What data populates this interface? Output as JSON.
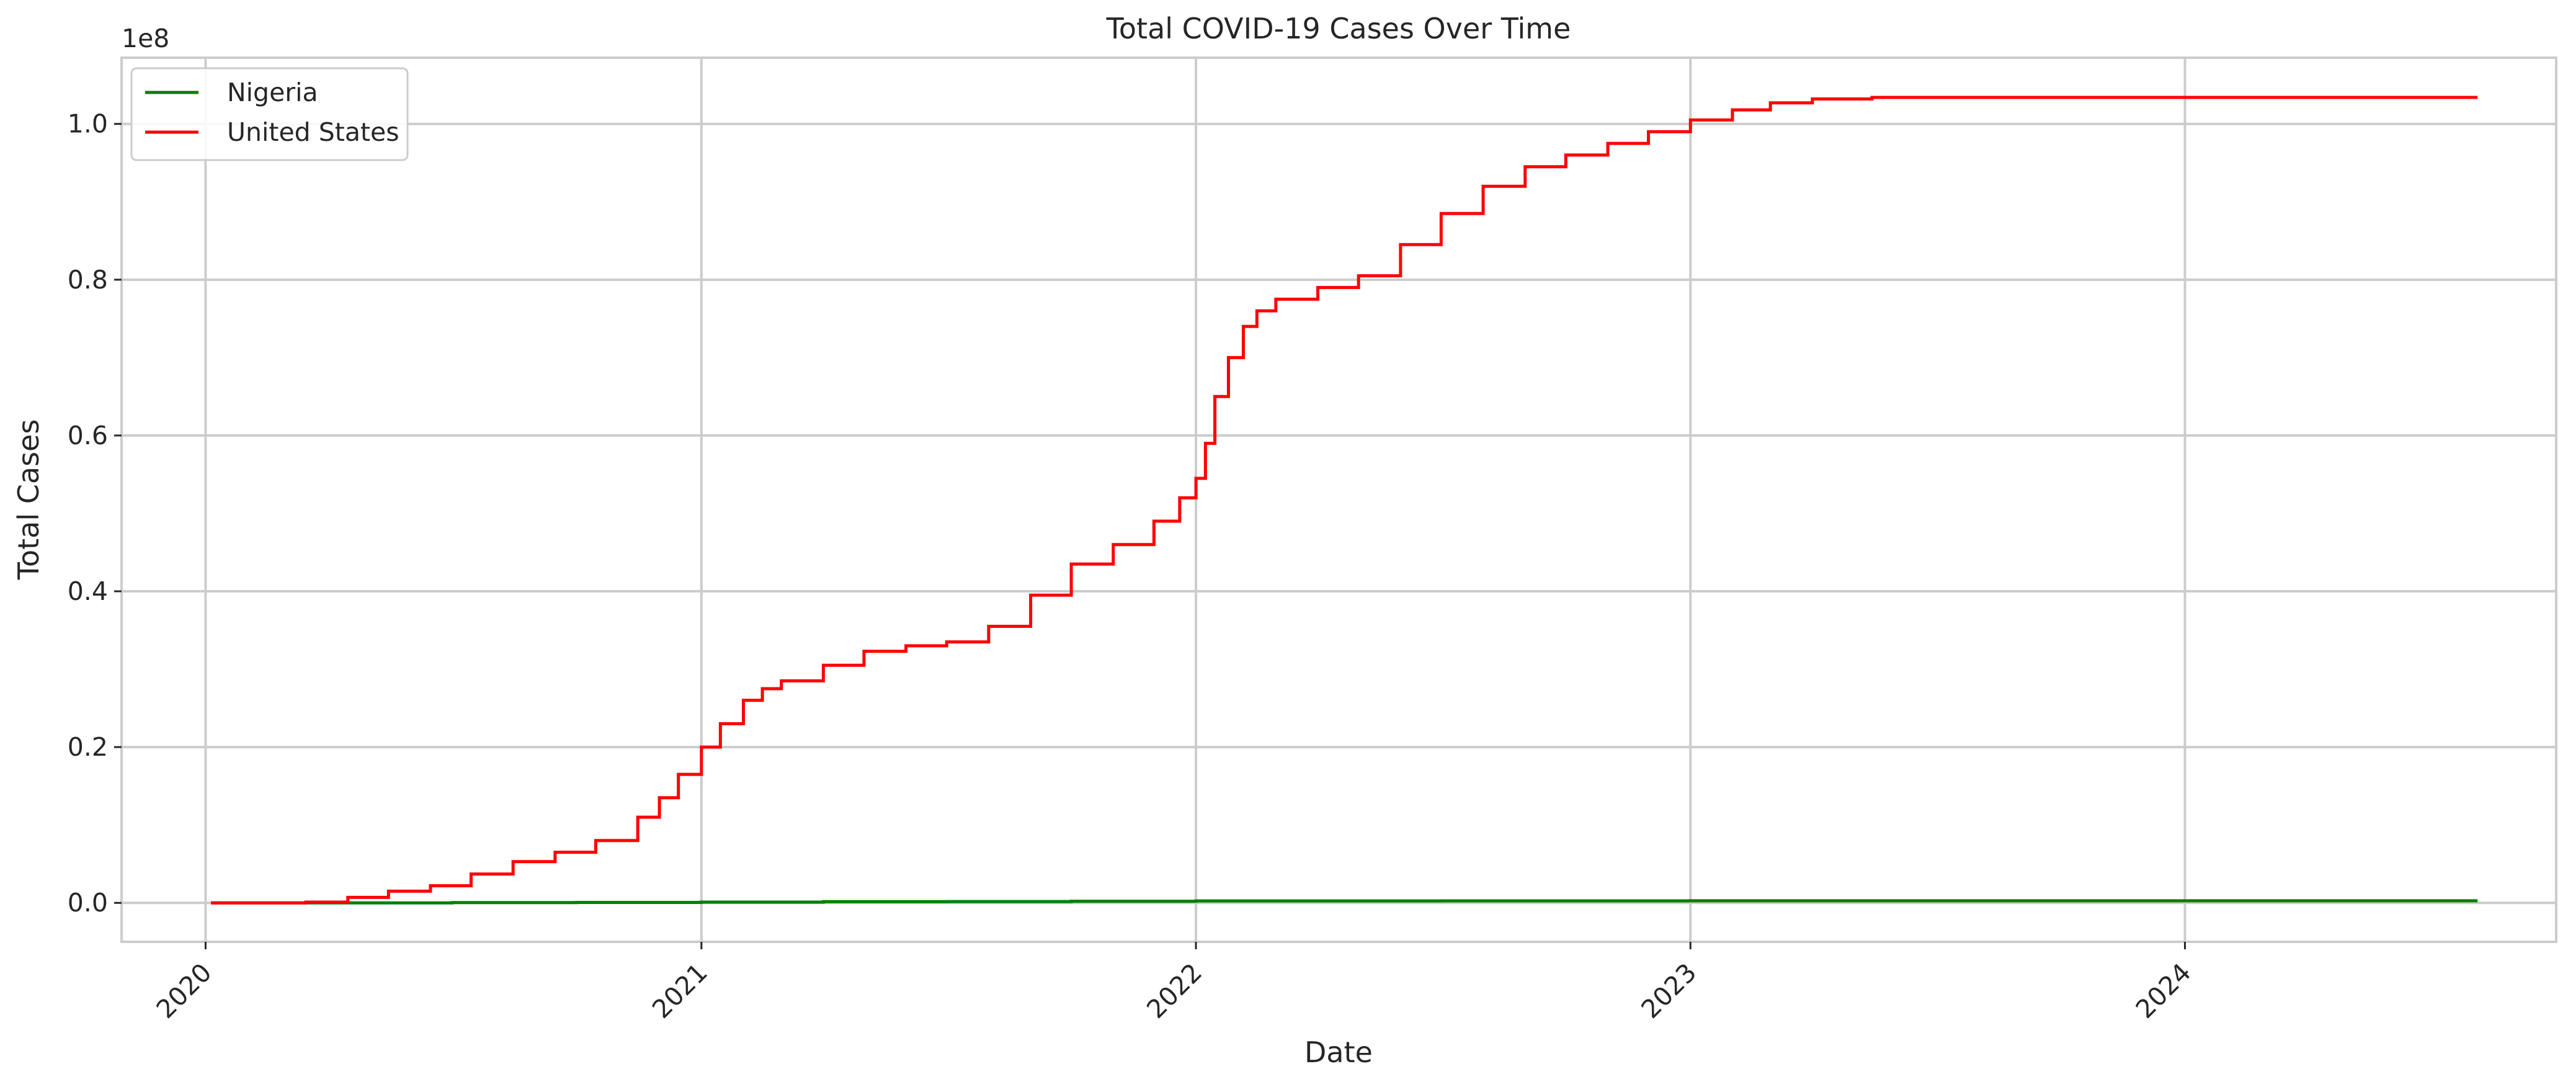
{
  "chart_data": {
    "type": "line",
    "title": "Total COVID-19 Cases Over Time",
    "xlabel": "Date",
    "ylabel": "Total Cases",
    "y_offset_label": "1e8",
    "xlim": [
      "2019-10-31",
      "2024-10-01"
    ],
    "ylim": [
      -5000000,
      108500000
    ],
    "x_ticks": [
      {
        "date": "2020-01-01",
        "label": "2020"
      },
      {
        "date": "2021-01-01",
        "label": "2021"
      },
      {
        "date": "2022-01-01",
        "label": "2022"
      },
      {
        "date": "2023-01-01",
        "label": "2023"
      },
      {
        "date": "2024-01-01",
        "label": "2024"
      }
    ],
    "y_ticks": [
      {
        "value": 0,
        "label": "0.0"
      },
      {
        "value": 20000000,
        "label": "0.2"
      },
      {
        "value": 40000000,
        "label": "0.4"
      },
      {
        "value": 60000000,
        "label": "0.6"
      },
      {
        "value": 80000000,
        "label": "0.8"
      },
      {
        "value": 100000000,
        "label": "1.0"
      }
    ],
    "grid": true,
    "legend_position": "top-left",
    "series": [
      {
        "name": "Nigeria",
        "color": "#008000",
        "line_style": "step",
        "points": [
          [
            "2020-01-05",
            0
          ],
          [
            "2020-04-01",
            0
          ],
          [
            "2020-07-01",
            30000
          ],
          [
            "2020-10-01",
            60000
          ],
          [
            "2021-01-01",
            100000
          ],
          [
            "2021-04-01",
            165000
          ],
          [
            "2021-07-01",
            170000
          ],
          [
            "2021-10-01",
            210000
          ],
          [
            "2022-01-01",
            245000
          ],
          [
            "2022-07-01",
            260000
          ],
          [
            "2023-01-01",
            266000
          ],
          [
            "2024-08-04",
            267000
          ]
        ]
      },
      {
        "name": "United States",
        "color": "#ff0000",
        "line_style": "step",
        "points": [
          [
            "2020-01-05",
            0
          ],
          [
            "2020-03-15",
            100000
          ],
          [
            "2020-04-15",
            700000
          ],
          [
            "2020-05-15",
            1500000
          ],
          [
            "2020-06-15",
            2200000
          ],
          [
            "2020-07-15",
            3700000
          ],
          [
            "2020-08-15",
            5300000
          ],
          [
            "2020-09-15",
            6500000
          ],
          [
            "2020-10-15",
            8000000
          ],
          [
            "2020-11-15",
            11000000
          ],
          [
            "2020-12-01",
            13500000
          ],
          [
            "2020-12-15",
            16500000
          ],
          [
            "2021-01-01",
            20000000
          ],
          [
            "2021-01-15",
            23000000
          ],
          [
            "2021-02-01",
            26000000
          ],
          [
            "2021-02-15",
            27500000
          ],
          [
            "2021-03-01",
            28500000
          ],
          [
            "2021-04-01",
            30500000
          ],
          [
            "2021-05-01",
            32300000
          ],
          [
            "2021-06-01",
            33000000
          ],
          [
            "2021-07-01",
            33500000
          ],
          [
            "2021-08-01",
            35500000
          ],
          [
            "2021-09-01",
            39500000
          ],
          [
            "2021-10-01",
            43500000
          ],
          [
            "2021-11-01",
            46000000
          ],
          [
            "2021-12-01",
            49000000
          ],
          [
            "2021-12-20",
            52000000
          ],
          [
            "2022-01-01",
            54500000
          ],
          [
            "2022-01-08",
            59000000
          ],
          [
            "2022-01-15",
            65000000
          ],
          [
            "2022-01-25",
            70000000
          ],
          [
            "2022-02-05",
            74000000
          ],
          [
            "2022-02-15",
            76000000
          ],
          [
            "2022-03-01",
            77500000
          ],
          [
            "2022-04-01",
            79000000
          ],
          [
            "2022-05-01",
            80500000
          ],
          [
            "2022-06-01",
            84500000
          ],
          [
            "2022-07-01",
            88500000
          ],
          [
            "2022-08-01",
            92000000
          ],
          [
            "2022-09-01",
            94500000
          ],
          [
            "2022-10-01",
            96000000
          ],
          [
            "2022-11-01",
            97500000
          ],
          [
            "2022-12-01",
            99000000
          ],
          [
            "2023-01-01",
            100500000
          ],
          [
            "2023-02-01",
            101800000
          ],
          [
            "2023-03-01",
            102700000
          ],
          [
            "2023-04-01",
            103200000
          ],
          [
            "2023-05-15",
            103400000
          ],
          [
            "2024-08-04",
            103400000
          ]
        ]
      }
    ]
  }
}
